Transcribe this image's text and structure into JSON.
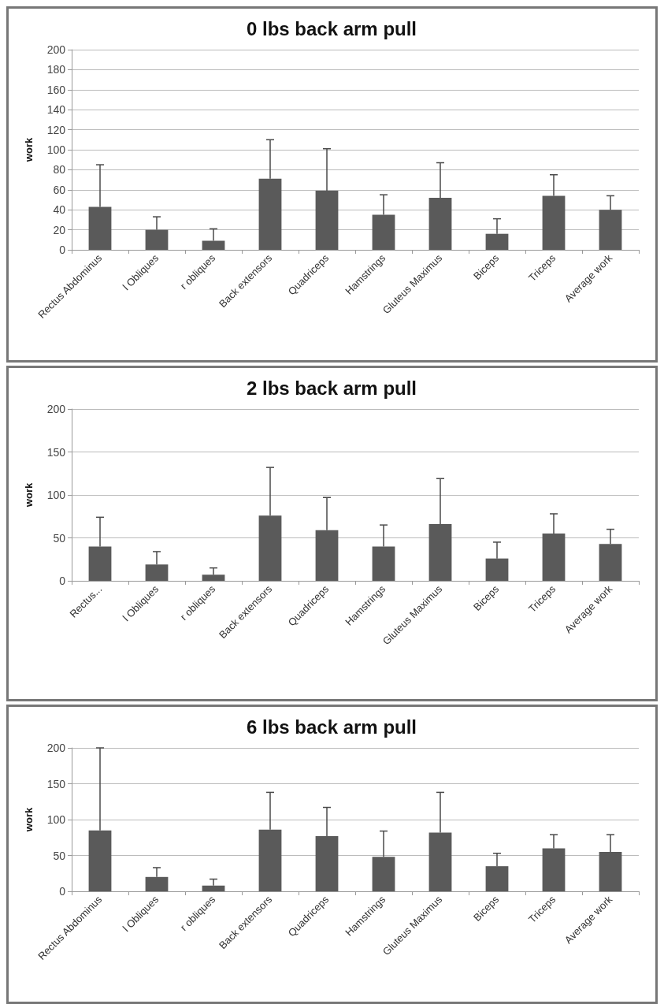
{
  "chart_data": [
    {
      "type": "bar",
      "title": "0 lbs back arm pull",
      "ylabel": "work",
      "categories": [
        "Rectus Abdominus",
        "l Obliques",
        "r obliques",
        "Back extensors",
        "Quadriceps",
        "Hamstrings",
        "Gluteus Maximus",
        "Biceps",
        "Triceps",
        "Average work"
      ],
      "values": [
        43,
        20,
        9,
        71,
        59,
        35,
        52,
        16,
        54,
        40
      ],
      "errors": [
        [
          43,
          85
        ],
        [
          20,
          33
        ],
        [
          9,
          21
        ],
        [
          71,
          110
        ],
        [
          59,
          101
        ],
        [
          35,
          55
        ],
        [
          52,
          87
        ],
        [
          16,
          31
        ],
        [
          54,
          75
        ],
        [
          40,
          54
        ]
      ],
      "color": "#5a5a5a",
      "ylim": [
        0,
        200
      ],
      "yticks": [
        0,
        20,
        40,
        60,
        80,
        100,
        120,
        140,
        160,
        180,
        200
      ],
      "grid": "y"
    },
    {
      "type": "bar",
      "title": "2 lbs back arm pull",
      "ylabel": "work",
      "categories": [
        "Rectus...",
        "l Obliques",
        "r obliques",
        "Back extensors",
        "Quadriceps",
        "Hamstrings",
        "Gluteus Maximus",
        "Biceps",
        "Triceps",
        "Average work"
      ],
      "values": [
        40,
        19,
        7,
        76,
        59,
        40,
        66,
        26,
        55,
        43
      ],
      "errors": [
        [
          40,
          74
        ],
        [
          19,
          34
        ],
        [
          7,
          15
        ],
        [
          76,
          132
        ],
        [
          59,
          97
        ],
        [
          40,
          65
        ],
        [
          66,
          119
        ],
        [
          26,
          45
        ],
        [
          55,
          78
        ],
        [
          43,
          60
        ]
      ],
      "color": "#5a5a5a",
      "ylim": [
        0,
        200
      ],
      "yticks": [
        0,
        50,
        100,
        150,
        200
      ],
      "grid": "y"
    },
    {
      "type": "bar",
      "title": "6 lbs back arm pull",
      "ylabel": "work",
      "categories": [
        "Rectus Abdominus",
        "l Obliques",
        "r obliques",
        "Back extensors",
        "Quadriceps",
        "Hamstrings",
        "Gluteus Maximus",
        "Biceps",
        "Triceps",
        "Average work"
      ],
      "values": [
        85,
        20,
        8,
        86,
        77,
        48,
        82,
        35,
        60,
        55
      ],
      "errors": [
        [
          85,
          200
        ],
        [
          20,
          33
        ],
        [
          8,
          17
        ],
        [
          86,
          138
        ],
        [
          77,
          117
        ],
        [
          48,
          84
        ],
        [
          82,
          138
        ],
        [
          35,
          53
        ],
        [
          60,
          79
        ],
        [
          55,
          79
        ]
      ],
      "color": "#5a5a5a",
      "ylim": [
        0,
        200
      ],
      "yticks": [
        0,
        50,
        100,
        150,
        200
      ],
      "grid": "y"
    }
  ]
}
